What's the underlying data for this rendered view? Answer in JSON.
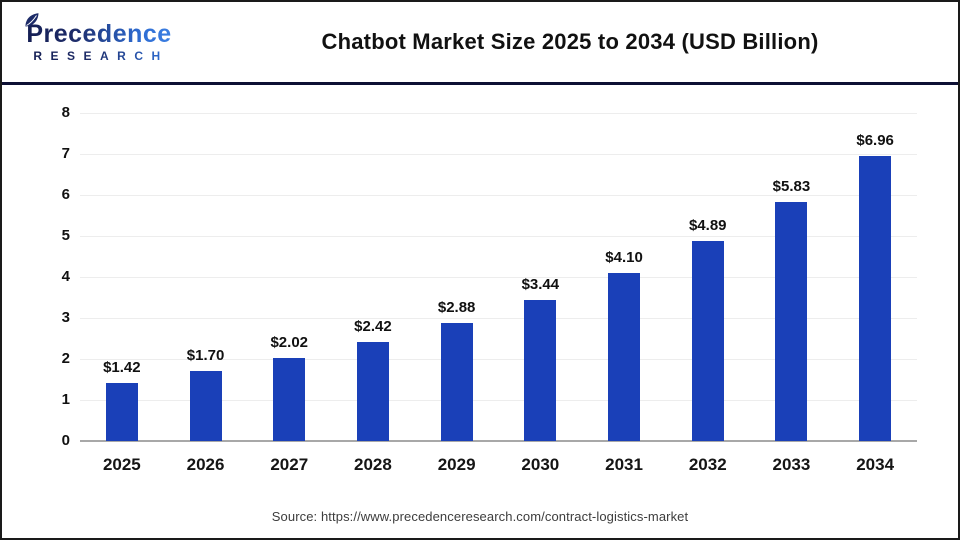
{
  "header": {
    "logo": {
      "name": "Precedence",
      "subname": "RESEARCH"
    },
    "title": "Chatbot Market Size 2025 to 2034 (USD Billion)"
  },
  "chart_data": {
    "type": "bar",
    "title": "Chatbot Market Size 2025 to 2034 (USD Billion)",
    "categories": [
      "2025",
      "2026",
      "2027",
      "2028",
      "2029",
      "2030",
      "2031",
      "2032",
      "2033",
      "2034"
    ],
    "values": [
      1.42,
      1.7,
      2.02,
      2.42,
      2.88,
      3.44,
      4.1,
      4.89,
      5.83,
      6.96
    ],
    "value_labels": [
      "$1.42",
      "$1.70",
      "$2.02",
      "$2.42",
      "$2.88",
      "$3.44",
      "$4.10",
      "$4.89",
      "$5.83",
      "$6.96"
    ],
    "xlabel": "",
    "ylabel": "",
    "ylim": [
      0,
      8
    ],
    "yticks": [
      0,
      1,
      2,
      3,
      4,
      5,
      6,
      7,
      8
    ],
    "grid": true,
    "legend": false,
    "bar_color": "#1a40b8"
  },
  "footer": {
    "source": "Source: https://www.precedenceresearch.com/contract-logistics-market"
  },
  "colors": {
    "bar": "#1a40b8",
    "separator": "#0d1034",
    "gridline": "#ededed",
    "baseline": "#a8a8a8",
    "text": "#111111",
    "source_text": "#3d3d3d",
    "logo_navy": "#1d2b68",
    "logo_blue": "#2e6cd2",
    "page_border": "#1a1a1a"
  }
}
